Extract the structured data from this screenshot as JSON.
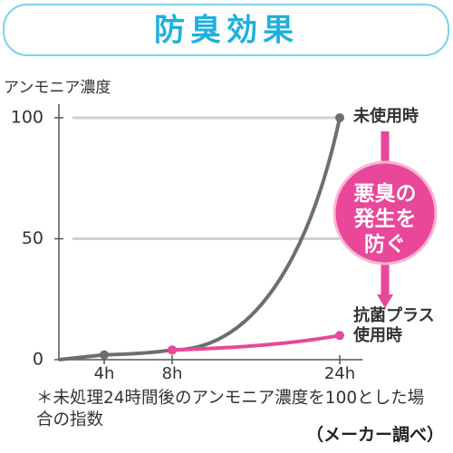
{
  "chart_data": {
    "type": "line",
    "title": "防臭効果",
    "ylabel": "アンモニア濃度",
    "categories": [
      null,
      "4h",
      "8h",
      "24h"
    ],
    "series": [
      {
        "name": "未使用時",
        "color": "#6e6e6e",
        "values": [
          0,
          2,
          4,
          100
        ]
      },
      {
        "name": "抗菌プラス使用時",
        "color": "#e8479a",
        "values": [
          null,
          null,
          4,
          10
        ]
      }
    ],
    "ylim": [
      0,
      100
    ],
    "yticks": [
      0,
      50,
      100
    ],
    "grid": true,
    "annotation": "悪臭の発生を防ぐ",
    "footnote": "＊未処理24時間後のアンモニア濃度を100とした場合の指数",
    "source": "（メーカー調べ）"
  }
}
